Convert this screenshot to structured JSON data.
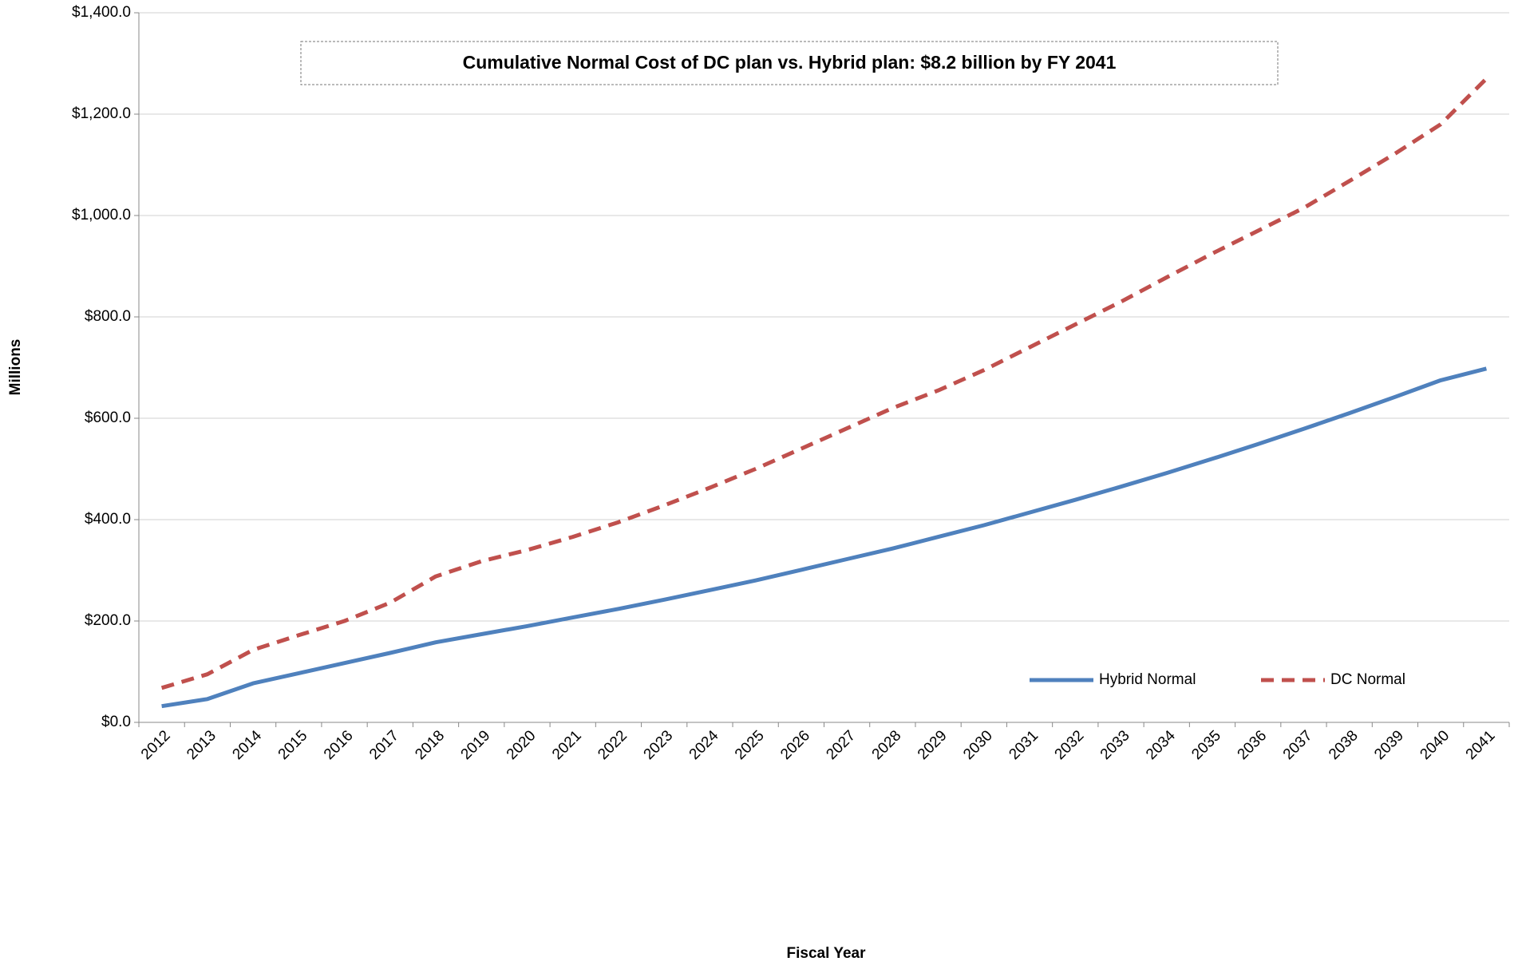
{
  "chart_data": {
    "type": "line",
    "annotation": "Cumulative Normal Cost of DC plan vs. Hybrid plan:  $8.2 billion by FY 2041",
    "x_label": "Fiscal Year",
    "y_label": "Millions",
    "categories": [
      "2012",
      "2013",
      "2014",
      "2015",
      "2016",
      "2017",
      "2018",
      "2019",
      "2020",
      "2021",
      "2022",
      "2023",
      "2024",
      "2025",
      "2026",
      "2027",
      "2028",
      "2029",
      "2030",
      "2031",
      "2032",
      "2033",
      "2034",
      "2035",
      "2036",
      "2037",
      "2038",
      "2039",
      "2040",
      "2041"
    ],
    "series": [
      {
        "name": "Hybrid Normal",
        "color": "#4f81bd",
        "dashed": false,
        "values": [
          32,
          46,
          77,
          97,
          117,
          137,
          158,
          174,
          190,
          207,
          224,
          242,
          261,
          280,
          301,
          322,
          343,
          366,
          389,
          414,
          439,
          465,
          492,
          520,
          549,
          579,
          610,
          642,
          675,
          698
        ]
      },
      {
        "name": "DC Normal",
        "color": "#c0504d",
        "dashed": true,
        "values": [
          68,
          95,
          143,
          172,
          200,
          236,
          288,
          318,
          340,
          366,
          395,
          428,
          463,
          500,
          540,
          580,
          620,
          655,
          695,
          740,
          785,
          830,
          878,
          925,
          970,
          1015,
          1068,
          1122,
          1180,
          1270
        ]
      }
    ],
    "ylim": [
      0,
      1400
    ],
    "yticks": [
      {
        "value": 0,
        "label": "$0.0"
      },
      {
        "value": 200,
        "label": "$200.0"
      },
      {
        "value": 400,
        "label": "$400.0"
      },
      {
        "value": 600,
        "label": "$600.0"
      },
      {
        "value": 800,
        "label": "$800.0"
      },
      {
        "value": 1000,
        "label": "$1,000.0"
      },
      {
        "value": 1200,
        "label": "$1,200.0"
      },
      {
        "value": 1400,
        "label": "$1,400.0"
      }
    ],
    "grid": true,
    "legend": "lower right"
  }
}
